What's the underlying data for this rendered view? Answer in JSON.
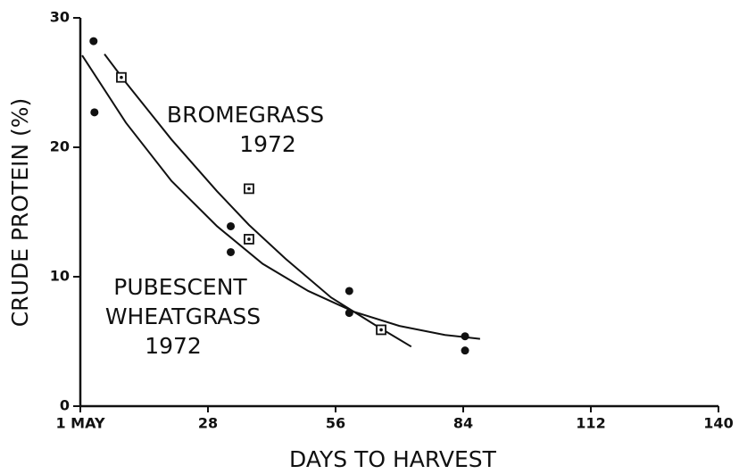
{
  "chart_data": {
    "type": "scatter",
    "xlabel": "DAYS TO HARVEST",
    "ylabel": "CRUDE PROTEIN (%)",
    "xlim": [
      0,
      140
    ],
    "ylim": [
      0,
      30
    ],
    "xticks": [
      {
        "value": 0,
        "label": "1 MAY"
      },
      28,
      56,
      84,
      112,
      140
    ],
    "yticks": [
      0,
      10,
      20,
      30
    ],
    "series": [
      {
        "marker": "circle",
        "color": "#111111",
        "x": [
          2.9,
          3.1,
          33,
          33,
          59,
          59,
          84.4,
          84.4
        ],
        "values": [
          28.2,
          22.7,
          13.9,
          11.9,
          8.9,
          7.2,
          5.4,
          4.3
        ],
        "fit": {
          "x": [
            0.4,
            10,
            20,
            30,
            40,
            50,
            60,
            70,
            80,
            87.7
          ],
          "values": [
            27.1,
            21.9,
            17.4,
            13.9,
            11.0,
            8.9,
            7.3,
            6.2,
            5.5,
            5.2
          ]
        }
      },
      {
        "marker": "square",
        "color": "#111111",
        "x": [
          9,
          37,
          37,
          66
        ],
        "values": [
          25.4,
          16.8,
          12.9,
          5.9
        ],
        "fit": {
          "x": [
            5.3,
            10,
            20,
            30,
            37,
            45,
            55,
            65,
            72.6
          ],
          "values": [
            27.2,
            25.0,
            20.6,
            16.6,
            14.0,
            11.4,
            8.4,
            6.2,
            4.6
          ]
        }
      }
    ],
    "annotations": [
      [
        "BROMEGRASS",
        "1972"
      ],
      [
        "PUBESCENT",
        "WHEATGRASS",
        "1972"
      ]
    ]
  }
}
